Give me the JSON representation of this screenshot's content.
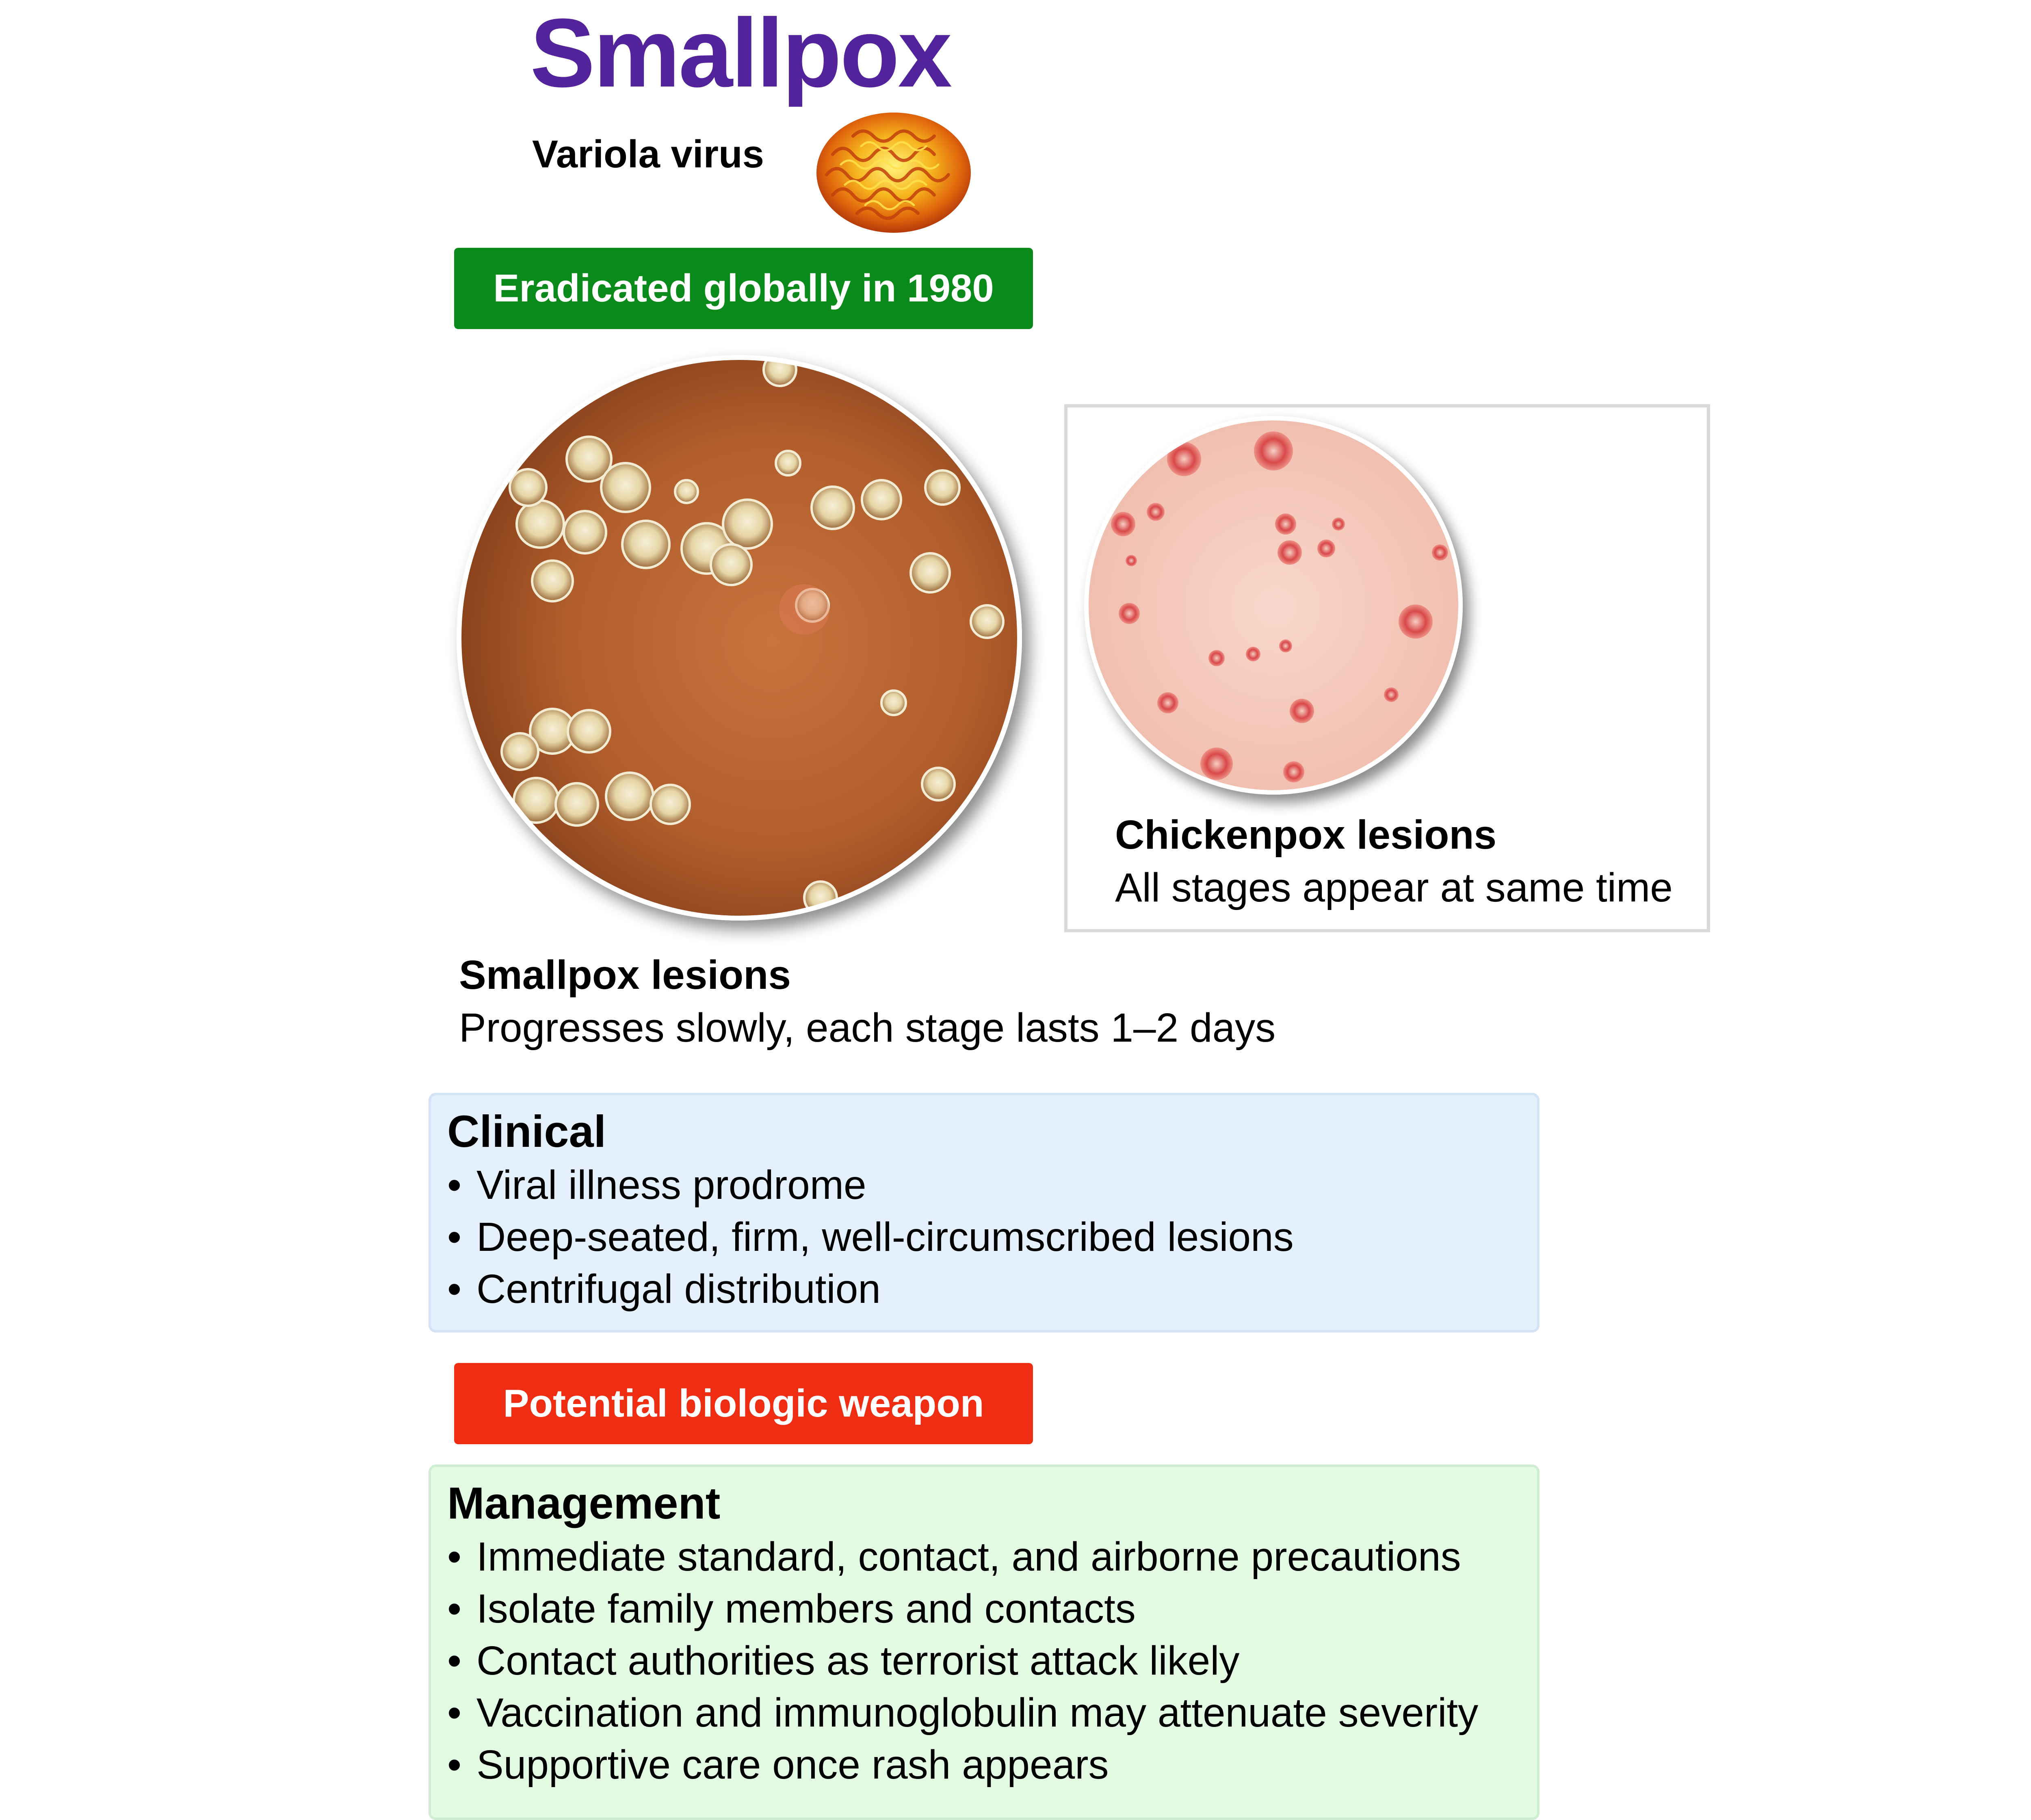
{
  "header": {
    "title": "Smallpox",
    "subtitle": "Variola virus",
    "virus_icon": "variola-virus-icon"
  },
  "banners": {
    "eradicated": "Eradicated globally in 1980",
    "weapon": "Potential biologic weapon"
  },
  "colors": {
    "title": "#52239a",
    "eradicated_banner": "#0a8a1a",
    "weapon_banner": "#ee2d12",
    "clinical_box": "#e4f0fc",
    "management_box": "#e3fbe3"
  },
  "smallpox_panel": {
    "caption_title": "Smallpox lesions",
    "caption_text": "Progresses slowly, each stage lasts 1–2 days"
  },
  "chickenpox_panel": {
    "caption_title": "Chickenpox lesions",
    "caption_text": "All stages appear at same time"
  },
  "clinical": {
    "heading": "Clinical",
    "bullet": "•",
    "items": [
      "Viral illness prodrome",
      "Deep-seated, firm, well-circumscribed lesions",
      "Centrifugal distribution"
    ]
  },
  "management": {
    "heading": "Management",
    "bullet": "•",
    "items": [
      "Immediate standard, contact, and airborne precautions",
      "Isolate family members and contacts",
      "Contact authorities as terrorist attack likely",
      "Vaccination and immunoglobulin may attenuate severity",
      "Supportive care once rash appears"
    ]
  }
}
